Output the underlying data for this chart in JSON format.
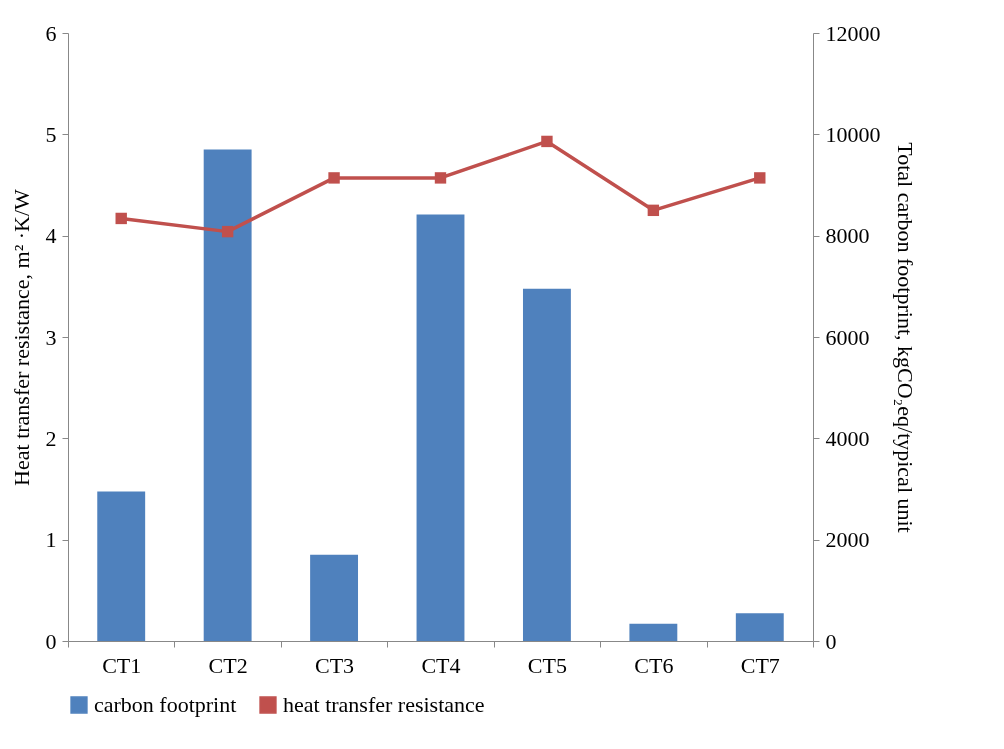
{
  "chart_data": {
    "type": "bar",
    "categories": [
      "CT1",
      "CT2",
      "CT3",
      "CT4",
      "CT5",
      "CT6",
      "CT7"
    ],
    "ylabel": "Heat transfer resistance, m² ·K/W",
    "y2label": "Total carbon footprint, kgCO₂eq/typical unit",
    "ylim": [
      0,
      6
    ],
    "yticks": [
      0,
      1,
      2,
      3,
      4,
      5,
      6
    ],
    "y2lim": [
      0,
      12000
    ],
    "y2ticks": [
      0,
      2000,
      4000,
      6000,
      8000,
      10000,
      12000
    ],
    "series": [
      {
        "name": "carbon footprint",
        "axis": "y2",
        "color": "#4f81bd",
        "values": [
          2950,
          9700,
          1700,
          8420,
          6950,
          340,
          550
        ]
      },
      {
        "name": "heat transfer resistance",
        "type": "line",
        "color": "#c0504d",
        "values": [
          4.17,
          4.04,
          4.57,
          4.57,
          4.93,
          4.25,
          4.57
        ]
      }
    ],
    "marker": "square",
    "line_style": "solid",
    "grid": false,
    "legend": "bottom"
  }
}
